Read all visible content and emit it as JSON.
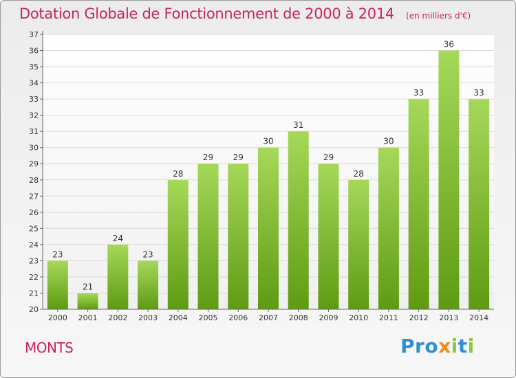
{
  "header": {
    "title": "Dotation Globale de Fonctionnement de 2000 à 2014",
    "subtitle": "(en milliers d'€)"
  },
  "commune": "MONTS",
  "logo": {
    "text": "Proxiti",
    "letters": [
      {
        "ch": "P",
        "color": "#2f8fd0"
      },
      {
        "ch": "r",
        "color": "#2f8fd0"
      },
      {
        "ch": "o",
        "color": "#2f8fd0"
      },
      {
        "ch": "x",
        "color": "#f08a1d"
      },
      {
        "ch": "i",
        "color": "#8cc63e"
      },
      {
        "ch": "t",
        "color": "#2f8fd0"
      },
      {
        "ch": "i",
        "color": "#8cc63e"
      }
    ]
  },
  "colors": {
    "bar_top": "#a6d85a",
    "bar_bottom": "#5e9b12",
    "grid": "#d9d9d9",
    "accent": "#c8245a"
  },
  "chart_data": {
    "type": "bar",
    "categories": [
      "2000",
      "2001",
      "2002",
      "2003",
      "2004",
      "2005",
      "2006",
      "2007",
      "2008",
      "2009",
      "2010",
      "2011",
      "2012",
      "2013",
      "2014"
    ],
    "values": [
      23,
      21,
      24,
      23,
      28,
      29,
      29,
      30,
      31,
      29,
      28,
      30,
      33,
      36,
      33
    ],
    "data_labels": [
      "23",
      "21",
      "24",
      "23",
      "28",
      "29",
      "29",
      "30",
      "31",
      "29",
      "28",
      "30",
      "33",
      "36",
      "33"
    ],
    "title": "Dotation Globale de Fonctionnement de 2000 à 2014",
    "subtitle": "(en milliers d'€)",
    "xlabel": "",
    "ylabel": "",
    "ylim": [
      20,
      37
    ],
    "yticks": [
      "20",
      "21",
      "22",
      "23",
      "24",
      "25",
      "26",
      "27",
      "28",
      "29",
      "30",
      "31",
      "32",
      "33",
      "34",
      "35",
      "36",
      "37"
    ],
    "grid": true,
    "legend": "none"
  }
}
